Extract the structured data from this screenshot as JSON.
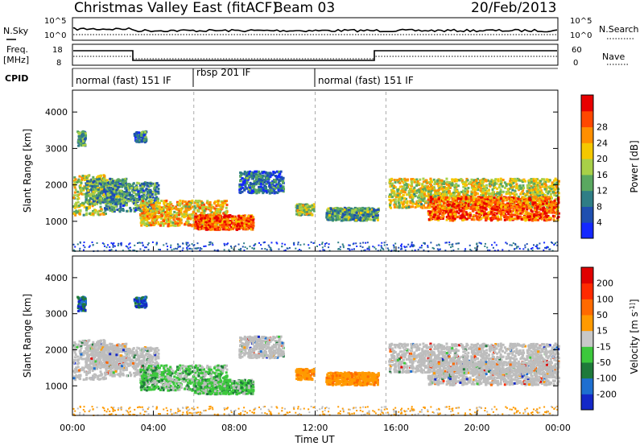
{
  "header": {
    "station": "Christmas Valley East (fitACF)",
    "beam": "Beam 03",
    "date": "20/Feb/2013"
  },
  "nsky_panel": {
    "left_label": "N.Sky",
    "right_label": "N.Search",
    "left_ticks": [
      "10^5",
      "10^0"
    ],
    "right_ticks": [
      "10^5",
      "10^0"
    ]
  },
  "freq_panel": {
    "left_label_1": "Freq.",
    "left_label_2": "[MHz]",
    "right_label": "Nave",
    "left_ticks": [
      "18",
      "8"
    ],
    "right_ticks": [
      "60",
      "0"
    ]
  },
  "cpid_panel": {
    "label": "CPID",
    "segments": [
      {
        "name": "normal (fast) 151 IF",
        "start_hour": 0,
        "end_hour": 6
      },
      {
        "name": "rbsp 201 IF",
        "start_hour": 6,
        "end_hour": 12
      },
      {
        "name": "normal (fast) 151 IF",
        "start_hour": 12,
        "end_hour": 24
      }
    ]
  },
  "chart_data": [
    {
      "type": "heatmap",
      "title": "",
      "quantity": "Power",
      "ylabel": "Slant Range [km]",
      "xlabel": "Time UT",
      "ylim": [
        180,
        4600
      ],
      "xlim_hours": [
        0,
        24
      ],
      "yticks": [
        1000,
        2000,
        3000,
        4000
      ],
      "colorbar": {
        "label": "Power [dB]",
        "ticks": [
          4,
          8,
          12,
          16,
          20,
          24,
          28
        ],
        "colors": [
          "#1428ff",
          "#1f4fb0",
          "#2f7e86",
          "#5aa860",
          "#a8d048",
          "#f5c800",
          "#ff8f00",
          "#ff4800",
          "#e80000"
        ]
      }
    },
    {
      "type": "heatmap",
      "title": "",
      "quantity": "Velocity",
      "ylabel": "Slant Range [km]",
      "xlabel": "Time UT",
      "ylim": [
        180,
        4600
      ],
      "xlim_hours": [
        0,
        24
      ],
      "yticks": [
        1000,
        2000,
        3000,
        4000
      ],
      "colorbar": {
        "label": "Velocity [m s^-1]",
        "ticks": [
          200,
          100,
          50,
          15,
          -15,
          -50,
          -100,
          -200
        ],
        "colors": [
          "#1428c8",
          "#1e6fd0",
          "#1e7a3a",
          "#3cc83c",
          "#c8c8c8",
          "#ff9a00",
          "#ff6a00",
          "#ff2a00",
          "#e00000"
        ]
      }
    }
  ],
  "x_axis": {
    "label": "Time UT",
    "ticks": [
      "00:00",
      "04:00",
      "08:00",
      "12:00",
      "16:00",
      "20:00",
      "00:00"
    ]
  },
  "colors": {
    "ground_scatter": "#bdbdbd",
    "background": "#ffffff"
  }
}
